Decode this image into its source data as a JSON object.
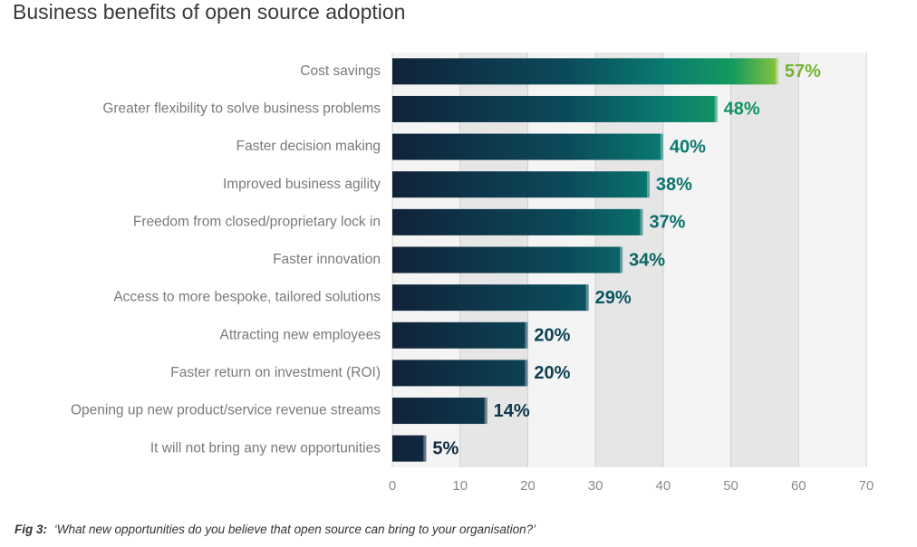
{
  "chart_data": {
    "type": "bar",
    "orientation": "horizontal",
    "title": "Business benefits of open source adoption",
    "caption_label": "Fig 3:",
    "caption": "‘What new opportunities do you believe that open source can bring to your organisation?’",
    "categories": [
      "Cost savings",
      "Greater flexibility to solve business problems",
      "Faster decision making",
      "Improved business agility",
      "Freedom from closed/proprietary lock in",
      "Faster innovation",
      "Access to more bespoke, tailored solutions",
      "Attracting new employees",
      "Faster return on investment (ROI)",
      "Opening up new product/service revenue streams",
      "It will not bring any new opportunities"
    ],
    "values": [
      57,
      48,
      40,
      38,
      37,
      34,
      29,
      20,
      20,
      14,
      5
    ],
    "value_labels": [
      "57%",
      "48%",
      "40%",
      "38%",
      "37%",
      "34%",
      "29%",
      "20%",
      "20%",
      "14%",
      "5%"
    ],
    "xlim": [
      0,
      70
    ],
    "xticks": [
      0,
      10,
      20,
      30,
      40,
      50,
      60,
      70
    ],
    "grid": true
  }
}
